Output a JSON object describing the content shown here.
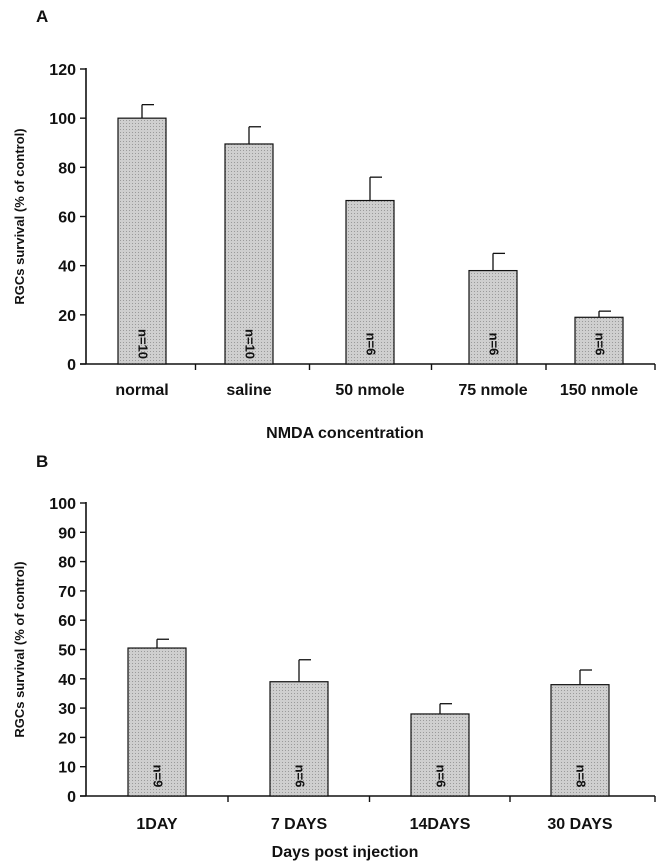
{
  "chart_data": [
    {
      "type": "bar",
      "panel_label": "A",
      "categories": [
        "normal",
        "saline",
        "50 nmole",
        "75 nmole",
        "150 nmole"
      ],
      "values": [
        100,
        89.5,
        66.5,
        38,
        19
      ],
      "errors": [
        5.5,
        7,
        9.5,
        7,
        2.5
      ],
      "n_labels": [
        "n=10",
        "n=10",
        "n=6",
        "n=6",
        "n=6"
      ],
      "xlabel": "NMDA concentration",
      "ylabel": "RGCs survival (% of control)",
      "ylim": [
        0,
        120
      ],
      "yticks": [
        0,
        20,
        40,
        60,
        80,
        100,
        120
      ],
      "grid": false,
      "bar_fill": "#cfcfcf"
    },
    {
      "type": "bar",
      "panel_label": "B",
      "categories": [
        "1DAY",
        "7 DAYS",
        "14DAYS",
        "30 DAYS"
      ],
      "values": [
        50.5,
        39,
        28,
        38
      ],
      "errors": [
        3,
        7.5,
        3.5,
        5
      ],
      "n_labels": [
        "n=9",
        "n=6",
        "n=6",
        "n=8"
      ],
      "xlabel": "Days post injection",
      "ylabel": "RGCs survival (% of control)",
      "ylim": [
        0,
        100
      ],
      "yticks": [
        0,
        10,
        20,
        30,
        40,
        50,
        60,
        70,
        80,
        90,
        100
      ],
      "grid": false,
      "bar_fill": "#cfcfcf"
    }
  ]
}
